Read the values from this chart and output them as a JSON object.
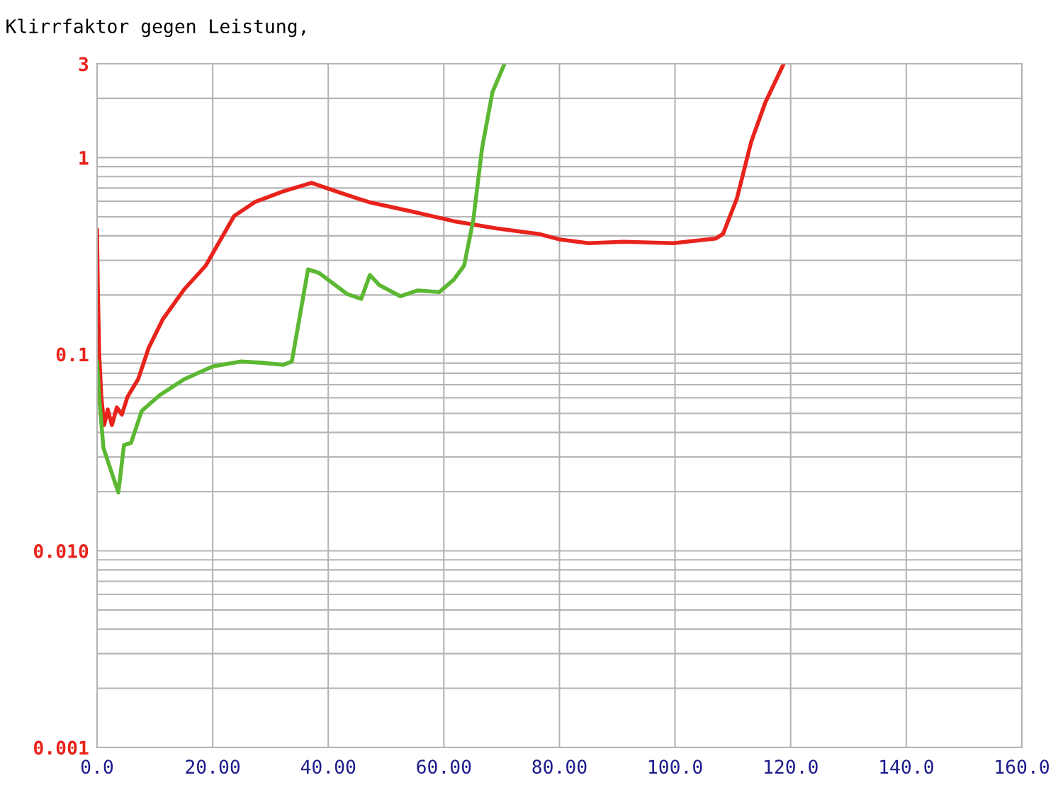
{
  "chart_data": {
    "type": "line",
    "title": "Klirrfaktor gegen Leistung,",
    "xlim": [
      0,
      160
    ],
    "xticks": [
      {
        "value": 0,
        "label": "0.0"
      },
      {
        "value": 20,
        "label": "20.00"
      },
      {
        "value": 40,
        "label": "40.00"
      },
      {
        "value": 60,
        "label": "60.00"
      },
      {
        "value": 80,
        "label": "80.00"
      },
      {
        "value": 100,
        "label": "100.0"
      },
      {
        "value": 120,
        "label": "120.0"
      },
      {
        "value": 140,
        "label": "140.0"
      },
      {
        "value": 160,
        "label": "160.0"
      }
    ],
    "ylim": [
      0.001,
      3
    ],
    "yticks": [
      {
        "value": 0.001,
        "label": "0.001"
      },
      {
        "value": 0.01,
        "label": "0.010"
      },
      0.1,
      1,
      3
    ],
    "log": "y",
    "grid": true,
    "marker": "none",
    "line_style": "solid",
    "series": [
      {
        "color": "#e8231c",
        "x": [
          0,
          0.12,
          0.37,
          0.74,
          1.23,
          1.84,
          2.57,
          3.43,
          4.29,
          5.27,
          7.11,
          8.95,
          11.4,
          15.1,
          18.8,
          23.7,
          27.3,
          32.2,
          37.1,
          42.1,
          47.0,
          54.3,
          61.7,
          69.0,
          76.4,
          80.1,
          85.0,
          91.1,
          99.7,
          107.0,
          108.3,
          110.7,
          113.2,
          115.6,
          118.8
        ],
        "values": [
          0.427,
          0.229,
          0.1,
          0.0607,
          0.0436,
          0.0523,
          0.0436,
          0.0536,
          0.0493,
          0.0607,
          0.0746,
          0.108,
          0.151,
          0.214,
          0.282,
          0.504,
          0.594,
          0.673,
          0.744,
          0.662,
          0.594,
          0.533,
          0.475,
          0.437,
          0.409,
          0.383,
          0.367,
          0.373,
          0.367,
          0.387,
          0.409,
          0.62,
          1.21,
          1.9,
          3.0
        ]
      },
      {
        "color": "#5cb832",
        "x": [
          0,
          0.37,
          1.1,
          2.45,
          3.68,
          4.66,
          5.89,
          7.72,
          10.8,
          15.1,
          20.0,
          24.9,
          28.6,
          32.2,
          33.7,
          36.5,
          38.4,
          43.3,
          45.7,
          47.2,
          48.8,
          52.5,
          55.5,
          59.2,
          61.7,
          63.5,
          65.1,
          66.6,
          68.4,
          70.5
        ],
        "values": [
          0.0918,
          0.0607,
          0.0334,
          0.0254,
          0.0198,
          0.0345,
          0.0354,
          0.0514,
          0.0618,
          0.0746,
          0.0867,
          0.0918,
          0.0904,
          0.0882,
          0.0918,
          0.27,
          0.259,
          0.202,
          0.191,
          0.253,
          0.225,
          0.197,
          0.211,
          0.207,
          0.239,
          0.282,
          0.483,
          1.11,
          2.15,
          3.0
        ]
      }
    ]
  }
}
